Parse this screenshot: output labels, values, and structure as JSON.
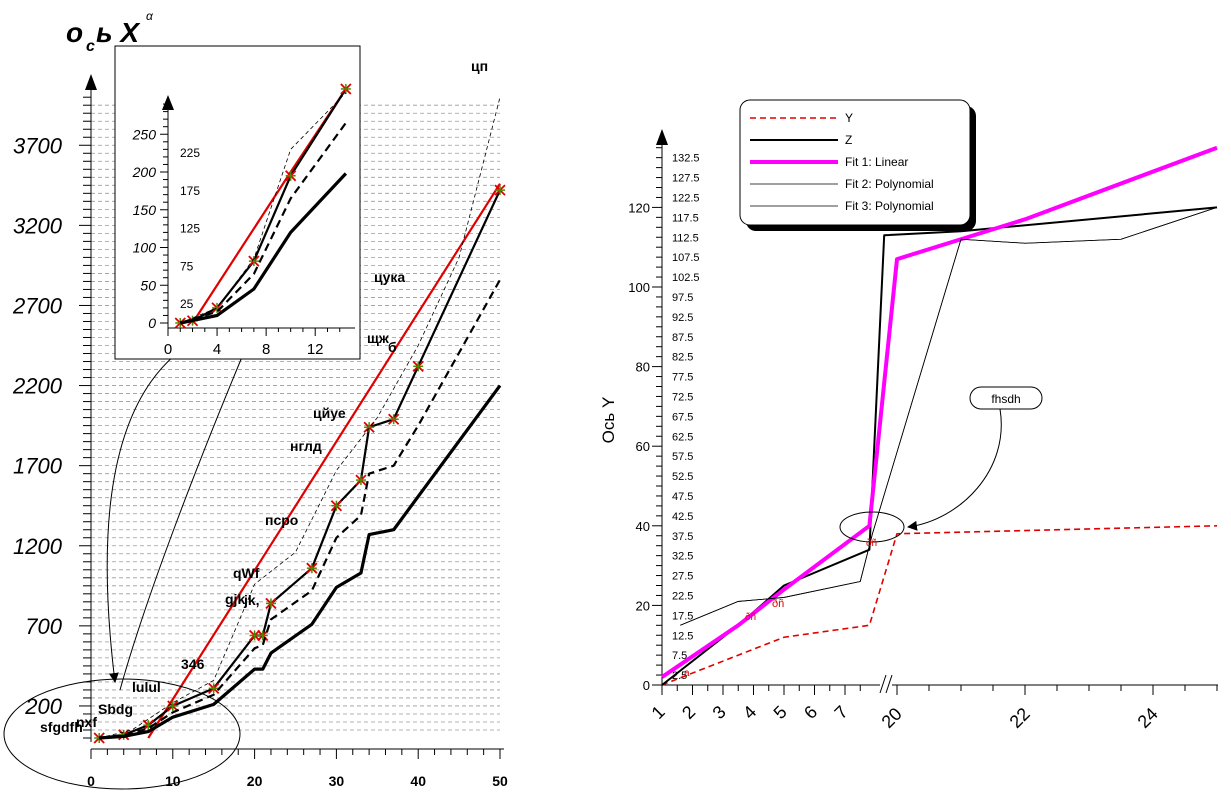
{
  "chart_data": [
    {
      "type": "line",
      "title": "о_сь X^α",
      "title_parts": {
        "main1": "о",
        "sub": "с",
        "main2": "ь X",
        "sup": "α"
      },
      "xlabel": "",
      "ylabel": "",
      "xlim": [
        0,
        50
      ],
      "ylim": [
        0,
        4000
      ],
      "x_ticks": [
        0,
        10,
        20,
        30,
        40,
        50
      ],
      "y_ticks": [
        200,
        700,
        1200,
        1700,
        2200,
        2700,
        3200,
        3700
      ],
      "grid": "horizontal dashed",
      "series": [
        {
          "color": "#e00000",
          "style": "solid",
          "x": [
            7,
            50
          ],
          "y": [
            0,
            3460
          ]
        },
        {
          "color": "#000000",
          "style": "solid-markers",
          "x": [
            1,
            4,
            7,
            10,
            15,
            20,
            21,
            22,
            27,
            30,
            33,
            34,
            37,
            40,
            50
          ],
          "y": [
            0,
            20,
            80,
            200,
            310,
            640,
            640,
            840,
            1060,
            1450,
            1610,
            1940,
            1990,
            2320,
            3420
          ]
        },
        {
          "color": "#000000",
          "style": "dashed",
          "x": [
            1,
            4,
            7,
            10,
            15,
            20,
            21,
            22,
            27,
            30,
            33,
            34,
            37,
            40,
            50
          ],
          "y": [
            0,
            15,
            60,
            160,
            270,
            560,
            580,
            740,
            920,
            1250,
            1390,
            1650,
            1700,
            1950,
            2860
          ]
        },
        {
          "color": "#000000",
          "style": "thick",
          "x": [
            1,
            4,
            7,
            10,
            15,
            20,
            21,
            22,
            27,
            30,
            33,
            34,
            37,
            50
          ],
          "y": [
            0,
            10,
            40,
            130,
            210,
            430,
            430,
            530,
            710,
            940,
            1030,
            1270,
            1300,
            2200
          ]
        },
        {
          "color": "#000000",
          "style": "thin-dashed",
          "x": [
            1,
            5,
            10,
            15,
            20,
            25,
            30,
            35,
            40,
            45,
            50
          ],
          "y": [
            0,
            50,
            220,
            360,
            960,
            1160,
            1670,
            2000,
            2450,
            3000,
            4000
          ]
        }
      ],
      "annotations": [
        "цп",
        "цука",
        "щж",
        "б",
        "цйуе",
        "нглд",
        "псро",
        "qWf",
        "gjk",
        "jk,",
        "346",
        "lulul",
        "Sbdg",
        "nxf",
        "sfgdfh"
      ],
      "inset": {
        "xlim": [
          0,
          15
        ],
        "ylim": [
          0,
          300
        ],
        "x_ticks": [
          0,
          4,
          8,
          12
        ],
        "y_ticks_left": [
          0,
          50,
          100,
          150,
          200,
          250
        ],
        "y_ticks_right": [
          25,
          75,
          125,
          175,
          225
        ],
        "series": [
          {
            "color": "#e00000",
            "x": [
              2,
              10,
              14.5
            ],
            "y": [
              0,
              200,
              310
            ]
          },
          {
            "color": "#000000",
            "style": "markers",
            "x": [
              1,
              2,
              4,
              7,
              10,
              14.5
            ],
            "y": [
              0,
              3,
              20,
              82,
              195,
              310
            ]
          },
          {
            "color": "#000000",
            "style": "dashed",
            "x": [
              1,
              4,
              7,
              10,
              14.5
            ],
            "y": [
              0,
              15,
              65,
              165,
              265
            ]
          },
          {
            "color": "#000000",
            "style": "thick",
            "x": [
              1,
              4,
              7,
              10,
              14.5
            ],
            "y": [
              0,
              10,
              45,
              120,
              198
            ]
          },
          {
            "color": "#000000",
            "style": "thin-dashed",
            "x": [
              1,
              4,
              7,
              10,
              14.5
            ],
            "y": [
              0,
              20,
              85,
              230,
              305
            ]
          }
        ]
      }
    },
    {
      "type": "line",
      "title": "",
      "xlabel": "",
      "ylabel": "Ось Y",
      "ylim": [
        0,
        135
      ],
      "y_major_ticks": [
        0,
        20,
        40,
        60,
        80,
        100,
        120
      ],
      "y_minor_labels": [
        "2.5",
        "7.5",
        "12.5",
        "17.5",
        "22.5",
        "27.5",
        "32.5",
        "37.5",
        "42.5",
        "47.5",
        "52.5",
        "57.5",
        "62.5",
        "67.5",
        "72.5",
        "77.5",
        "82.5",
        "87.5",
        "92.5",
        "97.5",
        "102.5",
        "107.5",
        "112.5",
        "117.5",
        "122.5",
        "127.5",
        "132.5"
      ],
      "x_ticks_segment1": [
        "1",
        "2",
        "3",
        "4",
        "5",
        "6",
        "7"
      ],
      "x_ticks_segment2": [
        "20",
        "22",
        "24"
      ],
      "axis_break": true,
      "legend": {
        "placement": "top-left",
        "entries": [
          {
            "label": "Y",
            "color": "#e00000",
            "style": "dashed"
          },
          {
            "label": "Z",
            "color": "#000000",
            "style": "solid"
          },
          {
            "label": "Fit 1: Linear",
            "color": "#ff00ff",
            "style": "thick"
          },
          {
            "label": "Fit 2: Polynomial",
            "color": "#000000",
            "style": "thin"
          },
          {
            "label": "Fit 3: Polynomial",
            "color": "#000000",
            "style": "thin"
          }
        ]
      },
      "series": [
        {
          "name": "Y",
          "x_disp": [
            1,
            5,
            7.8,
            20,
            25
          ],
          "y": [
            0,
            12,
            15,
            38,
            40
          ]
        },
        {
          "name": "Z",
          "x_disp": [
            1,
            3.5,
            5,
            7.8,
            19.8,
            21,
            25
          ],
          "y": [
            0,
            15,
            25,
            34,
            113,
            114,
            120
          ]
        },
        {
          "name": "Fit 1: Linear",
          "x_disp": [
            1,
            3.5,
            5,
            7.8,
            20,
            22,
            25
          ],
          "y": [
            2,
            15,
            24,
            40,
            107,
            117,
            135
          ]
        },
        {
          "name": "Fit 2: Polynomial",
          "x_disp": [
            1.6,
            3.5,
            5,
            7.5,
            7.9,
            21,
            22,
            23.5,
            25
          ],
          "y": [
            15,
            21,
            22,
            26,
            38,
            112,
            111,
            112,
            120
          ]
        },
        {
          "name": "Fit 3: Polynomial",
          "x_disp": [
            1.6,
            3.5,
            5,
            7.5,
            7.9,
            21,
            22,
            23.5,
            25
          ],
          "y": [
            15,
            21,
            22,
            26,
            38,
            112,
            111,
            112,
            120
          ]
        }
      ],
      "annotations": [
        "fhsdh",
        "ðñ",
        "ðñ",
        "ðñ",
        "a"
      ]
    }
  ]
}
